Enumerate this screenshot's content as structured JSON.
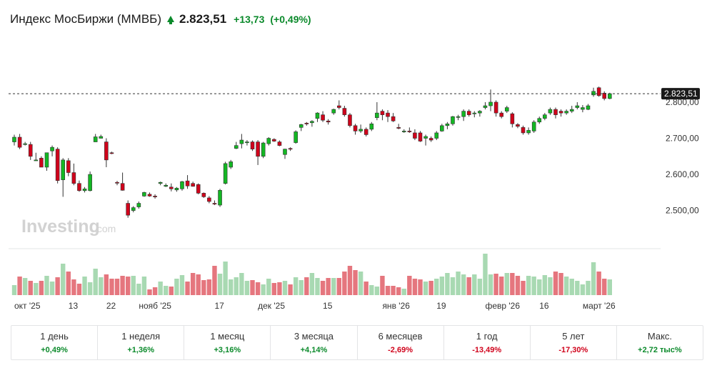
{
  "header": {
    "title": "Индекс МосБиржи (MMBБ)",
    "price": "2.823,51",
    "change": "+13,73",
    "change_pct": "(+0,49%)",
    "trend_icon": "arrow-up-icon",
    "up_color": "#0b8a2b"
  },
  "watermark": {
    "brand": "Investing",
    "suffix": ".com"
  },
  "chart_data": {
    "type": "candlestick",
    "y_axis": {
      "min": 2430,
      "max": 2885,
      "ticks": [
        2500,
        2600,
        2700,
        2800
      ],
      "tick_labels": [
        "2.500,00",
        "2.600,00",
        "2.700,00",
        "2.800,00"
      ]
    },
    "last_price": 2823.51,
    "last_price_label": "2.823,51",
    "x_labels": [
      {
        "label": "окт '25",
        "index": 0
      },
      {
        "label": "13",
        "index": 10
      },
      {
        "label": "22",
        "index": 17
      },
      {
        "label": "нояб '25",
        "index": 23
      },
      {
        "label": "17",
        "index": 37
      },
      {
        "label": "дек '25",
        "index": 45
      },
      {
        "label": "15",
        "index": 57
      },
      {
        "label": "янв '26",
        "index": 68
      },
      {
        "label": "19",
        "index": 78
      },
      {
        "label": "февр '26",
        "index": 87
      },
      {
        "label": "16",
        "index": 97
      },
      {
        "label": "март '26",
        "index": 105
      }
    ],
    "up_color": "#13b723",
    "down_color": "#d0021b",
    "up_volume_color": "#a8d9b2",
    "down_volume_color": "#e5767e",
    "candles": [
      {
        "o": 2690,
        "h": 2710,
        "l": 2680,
        "c": 2703
      },
      {
        "o": 2703,
        "h": 2712,
        "l": 2670,
        "c": 2675
      },
      {
        "o": 2683,
        "h": 2690,
        "l": 2680,
        "c": 2685
      },
      {
        "o": 2683,
        "h": 2690,
        "l": 2640,
        "c": 2650
      },
      {
        "o": 2640,
        "h": 2660,
        "l": 2640,
        "c": 2640
      },
      {
        "o": 2645,
        "h": 2650,
        "l": 2620,
        "c": 2620
      },
      {
        "o": 2620,
        "h": 2660,
        "l": 2610,
        "c": 2660
      },
      {
        "o": 2665,
        "h": 2680,
        "l": 2650,
        "c": 2675
      },
      {
        "o": 2670,
        "h": 2675,
        "l": 2575,
        "c": 2583
      },
      {
        "o": 2585,
        "h": 2645,
        "l": 2538,
        "c": 2640
      },
      {
        "o": 2638,
        "h": 2645,
        "l": 2595,
        "c": 2605
      },
      {
        "o": 2605,
        "h": 2630,
        "l": 2570,
        "c": 2575
      },
      {
        "o": 2575,
        "h": 2583,
        "l": 2552,
        "c": 2555
      },
      {
        "o": 2555,
        "h": 2565,
        "l": 2550,
        "c": 2560
      },
      {
        "o": 2555,
        "h": 2608,
        "l": 2553,
        "c": 2600
      },
      {
        "o": 2690,
        "h": 2712,
        "l": 2690,
        "c": 2704
      },
      {
        "o": 2700,
        "h": 2710,
        "l": 2700,
        "c": 2705
      },
      {
        "o": 2690,
        "h": 2700,
        "l": 2620,
        "c": 2640
      },
      {
        "o": 2660,
        "h": 2663,
        "l": 2656,
        "c": 2658
      },
      {
        "o": 2578,
        "h": 2582,
        "l": 2570,
        "c": 2577
      },
      {
        "o": 2575,
        "h": 2605,
        "l": 2555,
        "c": 2556
      },
      {
        "o": 2520,
        "h": 2528,
        "l": 2480,
        "c": 2487
      },
      {
        "o": 2500,
        "h": 2512,
        "l": 2495,
        "c": 2508
      },
      {
        "o": 2510,
        "h": 2525,
        "l": 2505,
        "c": 2520
      },
      {
        "o": 2540,
        "h": 2552,
        "l": 2538,
        "c": 2550
      },
      {
        "o": 2545,
        "h": 2550,
        "l": 2538,
        "c": 2540
      },
      {
        "o": 2540,
        "h": 2545,
        "l": 2533,
        "c": 2538
      },
      {
        "o": 2575,
        "h": 2580,
        "l": 2570,
        "c": 2578
      },
      {
        "o": 2567,
        "h": 2575,
        "l": 2565,
        "c": 2570
      },
      {
        "o": 2565,
        "h": 2575,
        "l": 2553,
        "c": 2560
      },
      {
        "o": 2557,
        "h": 2565,
        "l": 2552,
        "c": 2562
      },
      {
        "o": 2560,
        "h": 2582,
        "l": 2555,
        "c": 2580
      },
      {
        "o": 2582,
        "h": 2598,
        "l": 2560,
        "c": 2568
      },
      {
        "o": 2575,
        "h": 2580,
        "l": 2566,
        "c": 2567
      },
      {
        "o": 2572,
        "h": 2575,
        "l": 2545,
        "c": 2548
      },
      {
        "o": 2548,
        "h": 2550,
        "l": 2535,
        "c": 2538
      },
      {
        "o": 2535,
        "h": 2540,
        "l": 2520,
        "c": 2525
      },
      {
        "o": 2520,
        "h": 2528,
        "l": 2515,
        "c": 2519
      },
      {
        "o": 2515,
        "h": 2560,
        "l": 2510,
        "c": 2556
      },
      {
        "o": 2575,
        "h": 2635,
        "l": 2572,
        "c": 2630
      },
      {
        "o": 2620,
        "h": 2640,
        "l": 2615,
        "c": 2635
      },
      {
        "o": 2672,
        "h": 2690,
        "l": 2670,
        "c": 2680
      },
      {
        "o": 2685,
        "h": 2712,
        "l": 2672,
        "c": 2695
      },
      {
        "o": 2690,
        "h": 2695,
        "l": 2680,
        "c": 2690
      },
      {
        "o": 2690,
        "h": 2694,
        "l": 2665,
        "c": 2670
      },
      {
        "o": 2690,
        "h": 2695,
        "l": 2626,
        "c": 2650
      },
      {
        "o": 2650,
        "h": 2690,
        "l": 2645,
        "c": 2687
      },
      {
        "o": 2685,
        "h": 2703,
        "l": 2680,
        "c": 2700
      },
      {
        "o": 2697,
        "h": 2700,
        "l": 2690,
        "c": 2692
      },
      {
        "o": 2690,
        "h": 2694,
        "l": 2678,
        "c": 2680
      },
      {
        "o": 2655,
        "h": 2671,
        "l": 2643,
        "c": 2670
      },
      {
        "o": 2672,
        "h": 2675,
        "l": 2665,
        "c": 2670
      },
      {
        "o": 2688,
        "h": 2722,
        "l": 2685,
        "c": 2718
      },
      {
        "o": 2730,
        "h": 2740,
        "l": 2720,
        "c": 2738
      },
      {
        "o": 2742,
        "h": 2745,
        "l": 2735,
        "c": 2740
      },
      {
        "o": 2743,
        "h": 2750,
        "l": 2732,
        "c": 2747
      },
      {
        "o": 2755,
        "h": 2772,
        "l": 2745,
        "c": 2770
      },
      {
        "o": 2765,
        "h": 2775,
        "l": 2745,
        "c": 2750
      },
      {
        "o": 2748,
        "h": 2753,
        "l": 2738,
        "c": 2745
      },
      {
        "o": 2770,
        "h": 2782,
        "l": 2765,
        "c": 2780
      },
      {
        "o": 2790,
        "h": 2805,
        "l": 2780,
        "c": 2785
      },
      {
        "o": 2783,
        "h": 2790,
        "l": 2760,
        "c": 2765
      },
      {
        "o": 2765,
        "h": 2770,
        "l": 2730,
        "c": 2735
      },
      {
        "o": 2735,
        "h": 2740,
        "l": 2710,
        "c": 2720
      },
      {
        "o": 2720,
        "h": 2738,
        "l": 2715,
        "c": 2725
      },
      {
        "o": 2725,
        "h": 2730,
        "l": 2705,
        "c": 2710
      },
      {
        "o": 2725,
        "h": 2745,
        "l": 2720,
        "c": 2740
      },
      {
        "o": 2757,
        "h": 2800,
        "l": 2750,
        "c": 2770
      },
      {
        "o": 2775,
        "h": 2780,
        "l": 2750,
        "c": 2765
      },
      {
        "o": 2770,
        "h": 2778,
        "l": 2745,
        "c": 2760
      },
      {
        "o": 2760,
        "h": 2770,
        "l": 2745,
        "c": 2748
      },
      {
        "o": 2730,
        "h": 2740,
        "l": 2725,
        "c": 2728
      },
      {
        "o": 2720,
        "h": 2725,
        "l": 2715,
        "c": 2720
      },
      {
        "o": 2720,
        "h": 2730,
        "l": 2715,
        "c": 2718
      },
      {
        "o": 2715,
        "h": 2725,
        "l": 2695,
        "c": 2700
      },
      {
        "o": 2715,
        "h": 2720,
        "l": 2690,
        "c": 2692
      },
      {
        "o": 2700,
        "h": 2710,
        "l": 2680,
        "c": 2705
      },
      {
        "o": 2700,
        "h": 2705,
        "l": 2690,
        "c": 2695
      },
      {
        "o": 2700,
        "h": 2720,
        "l": 2695,
        "c": 2715
      },
      {
        "o": 2720,
        "h": 2740,
        "l": 2718,
        "c": 2735
      },
      {
        "o": 2735,
        "h": 2745,
        "l": 2725,
        "c": 2740
      },
      {
        "o": 2740,
        "h": 2762,
        "l": 2735,
        "c": 2760
      },
      {
        "o": 2760,
        "h": 2765,
        "l": 2750,
        "c": 2760
      },
      {
        "o": 2760,
        "h": 2780,
        "l": 2748,
        "c": 2775
      },
      {
        "o": 2775,
        "h": 2780,
        "l": 2760,
        "c": 2765
      },
      {
        "o": 2768,
        "h": 2775,
        "l": 2758,
        "c": 2770
      },
      {
        "o": 2770,
        "h": 2778,
        "l": 2760,
        "c": 2775
      },
      {
        "o": 2785,
        "h": 2800,
        "l": 2780,
        "c": 2790
      },
      {
        "o": 2790,
        "h": 2835,
        "l": 2775,
        "c": 2800
      },
      {
        "o": 2800,
        "h": 2805,
        "l": 2760,
        "c": 2770
      },
      {
        "o": 2770,
        "h": 2775,
        "l": 2755,
        "c": 2760
      },
      {
        "o": 2775,
        "h": 2790,
        "l": 2770,
        "c": 2785
      },
      {
        "o": 2768,
        "h": 2772,
        "l": 2730,
        "c": 2740
      },
      {
        "o": 2738,
        "h": 2742,
        "l": 2728,
        "c": 2733
      },
      {
        "o": 2730,
        "h": 2735,
        "l": 2710,
        "c": 2715
      },
      {
        "o": 2715,
        "h": 2730,
        "l": 2710,
        "c": 2722
      },
      {
        "o": 2720,
        "h": 2750,
        "l": 2715,
        "c": 2745
      },
      {
        "o": 2745,
        "h": 2760,
        "l": 2740,
        "c": 2755
      },
      {
        "o": 2755,
        "h": 2770,
        "l": 2750,
        "c": 2765
      },
      {
        "o": 2770,
        "h": 2785,
        "l": 2765,
        "c": 2780
      },
      {
        "o": 2780,
        "h": 2785,
        "l": 2755,
        "c": 2765
      },
      {
        "o": 2775,
        "h": 2780,
        "l": 2760,
        "c": 2770
      },
      {
        "o": 2770,
        "h": 2780,
        "l": 2765,
        "c": 2775
      },
      {
        "o": 2775,
        "h": 2790,
        "l": 2770,
        "c": 2780
      },
      {
        "o": 2785,
        "h": 2800,
        "l": 2780,
        "c": 2790
      },
      {
        "o": 2780,
        "h": 2792,
        "l": 2772,
        "c": 2785
      },
      {
        "o": 2780,
        "h": 2795,
        "l": 2778,
        "c": 2790
      },
      {
        "o": 2820,
        "h": 2840,
        "l": 2815,
        "c": 2830
      },
      {
        "o": 2840,
        "h": 2843,
        "l": 2815,
        "c": 2818
      },
      {
        "o": 2825,
        "h": 2830,
        "l": 2805,
        "c": 2810
      },
      {
        "o": 2810,
        "h": 2826,
        "l": 2808,
        "c": 2823.51
      }
    ],
    "volumes": [
      14,
      26,
      24,
      20,
      17,
      20,
      27,
      19,
      25,
      44,
      33,
      22,
      16,
      26,
      18,
      37,
      25,
      29,
      23,
      23,
      27,
      26,
      27,
      16,
      26,
      8,
      11,
      19,
      13,
      12,
      23,
      28,
      19,
      31,
      29,
      21,
      22,
      41,
      30,
      47,
      22,
      25,
      31,
      20,
      21,
      18,
      15,
      23,
      17,
      18,
      20,
      15,
      25,
      21,
      25,
      31,
      24,
      20,
      24,
      24,
      24,
      33,
      41,
      35,
      33,
      19,
      14,
      12,
      27,
      13,
      13,
      11,
      9,
      27,
      23,
      22,
      19,
      20,
      23,
      26,
      31,
      25,
      33,
      29,
      25,
      29,
      23,
      58,
      29,
      30,
      26,
      31,
      31,
      27,
      20,
      27,
      26,
      22,
      28,
      25,
      33,
      31,
      26,
      23,
      20,
      15,
      20,
      46,
      33,
      23,
      22
    ]
  },
  "performance": [
    {
      "label": "1 день",
      "value": "+0,49%",
      "dir": "pos"
    },
    {
      "label": "1 неделя",
      "value": "+1,36%",
      "dir": "pos"
    },
    {
      "label": "1 месяц",
      "value": "+3,16%",
      "dir": "pos"
    },
    {
      "label": "3 месяца",
      "value": "+4,14%",
      "dir": "pos"
    },
    {
      "label": "6 месяцев",
      "value": "-2,69%",
      "dir": "neg"
    },
    {
      "label": "1 год",
      "value": "-13,49%",
      "dir": "neg"
    },
    {
      "label": "5 лет",
      "value": "-17,30%",
      "dir": "neg"
    },
    {
      "label": "Макс.",
      "value": "+2,72 тыс%",
      "dir": "pos"
    }
  ]
}
